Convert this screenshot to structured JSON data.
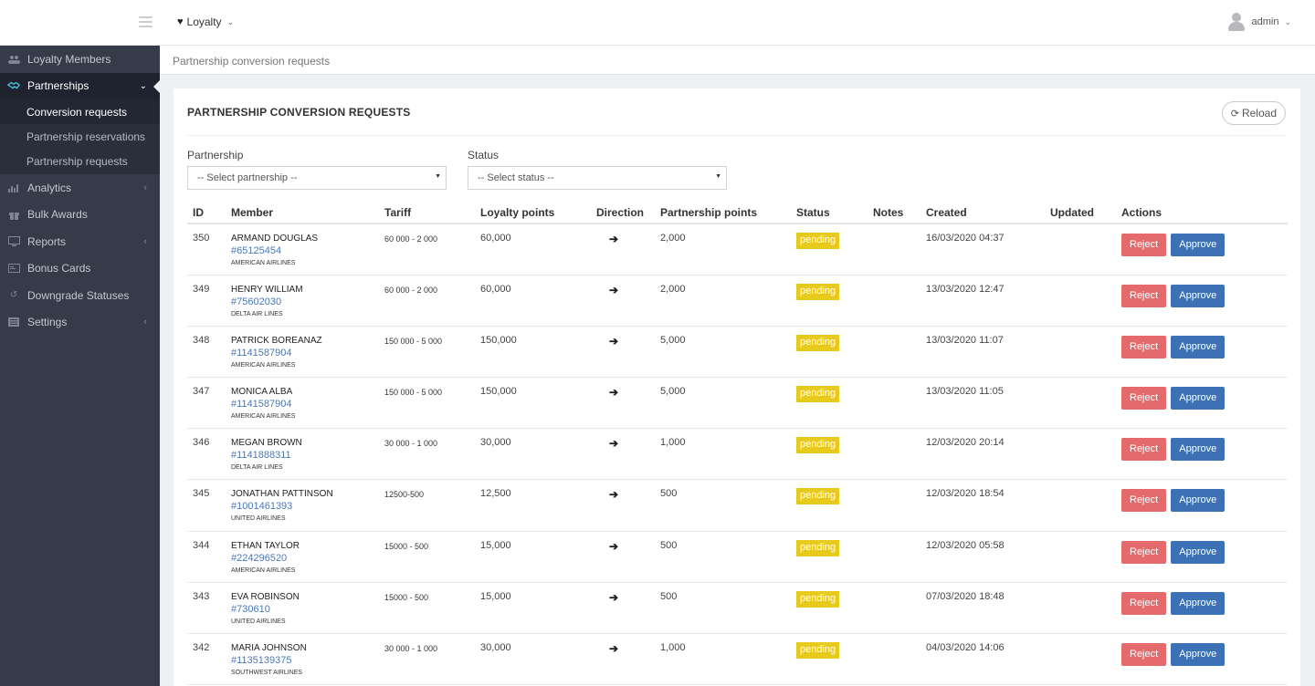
{
  "topbar": {
    "module_label": "Loyalty",
    "user_label": "admin"
  },
  "sidebar": {
    "items": [
      {
        "label": "Loyalty Members",
        "icon": "users-icon"
      },
      {
        "label": "Partnerships",
        "icon": "handshake-icon",
        "active": true
      },
      {
        "label": "Analytics",
        "icon": "bar-chart-icon"
      },
      {
        "label": "Bulk Awards",
        "icon": "gift-icon"
      },
      {
        "label": "Reports",
        "icon": "monitor-icon"
      },
      {
        "label": "Bonus Cards",
        "icon": "card-icon"
      },
      {
        "label": "Downgrade Statuses",
        "icon": "undo-icon"
      },
      {
        "label": "Settings",
        "icon": "list-icon"
      }
    ],
    "sub_items": [
      {
        "label": "Conversion requests",
        "active": true
      },
      {
        "label": "Partnership reservations"
      },
      {
        "label": "Partnership requests"
      }
    ]
  },
  "breadcrumb": "Partnership conversion requests",
  "panel": {
    "title": "PARTNERSHIP CONVERSION REQUESTS",
    "reload_label": "Reload"
  },
  "filters": {
    "partnership_label": "Partnership",
    "partnership_value": "-- Select partnership --",
    "status_label": "Status",
    "status_value": "-- Select status --"
  },
  "table": {
    "columns": [
      "ID",
      "Member",
      "Tariff",
      "Loyalty points",
      "Direction",
      "Partnership points",
      "Status",
      "Notes",
      "Created",
      "Updated",
      "Actions"
    ],
    "reject_label": "Reject",
    "approve_label": "Approve",
    "rows": [
      {
        "id": "350",
        "name": "ARMAND DOUGLAS",
        "card": "#65125454",
        "airline": "AMERICAN AIRLINES",
        "tariff": "60 000 - 2 000",
        "loyalty_points": "60,000",
        "partnership_points": "2,000",
        "status": "pending",
        "notes": "",
        "created": "16/03/2020 04:37",
        "updated": ""
      },
      {
        "id": "349",
        "name": "HENRY WILLIAM",
        "card": "#75602030",
        "airline": "DELTA AIR LINES",
        "tariff": "60 000 - 2 000",
        "loyalty_points": "60,000",
        "partnership_points": "2,000",
        "status": "pending",
        "notes": "",
        "created": "13/03/2020 12:47",
        "updated": ""
      },
      {
        "id": "348",
        "name": "PATRICK BOREANAZ",
        "card": "#1141587904",
        "airline": "AMERICAN AIRLINES",
        "tariff": "150 000 - 5 000",
        "loyalty_points": "150,000",
        "partnership_points": "5,000",
        "status": "pending",
        "notes": "",
        "created": "13/03/2020 11:07",
        "updated": ""
      },
      {
        "id": "347",
        "name": "MONICA ALBA",
        "card": "#1141587904",
        "airline": "AMERICAN AIRLINES",
        "tariff": "150 000 - 5 000",
        "loyalty_points": "150,000",
        "partnership_points": "5,000",
        "status": "pending",
        "notes": "",
        "created": "13/03/2020 11:05",
        "updated": ""
      },
      {
        "id": "346",
        "name": "MEGAN BROWN",
        "card": "#1141888311",
        "airline": "DELTA AIR LINES",
        "tariff": "30 000 - 1 000",
        "loyalty_points": "30,000",
        "partnership_points": "1,000",
        "status": "pending",
        "notes": "",
        "created": "12/03/2020 20:14",
        "updated": ""
      },
      {
        "id": "345",
        "name": "JONATHAN PATTINSON",
        "card": "#1001461393",
        "airline": "UNITED AIRLINES",
        "tariff": "12500-500",
        "loyalty_points": "12,500",
        "partnership_points": "500",
        "status": "pending",
        "notes": "",
        "created": "12/03/2020 18:54",
        "updated": ""
      },
      {
        "id": "344",
        "name": "ETHAN TAYLOR",
        "card": "#224296520",
        "airline": "AMERICAN AIRLINES",
        "tariff": "15000 - 500",
        "loyalty_points": "15,000",
        "partnership_points": "500",
        "status": "pending",
        "notes": "",
        "created": "12/03/2020 05:58",
        "updated": ""
      },
      {
        "id": "343",
        "name": "EVA ROBINSON",
        "card": "#730610",
        "airline": "UNITED AIRLINES",
        "tariff": "15000 - 500",
        "loyalty_points": "15,000",
        "partnership_points": "500",
        "status": "pending",
        "notes": "",
        "created": "07/03/2020 18:48",
        "updated": ""
      },
      {
        "id": "342",
        "name": "MARIA JOHNSON",
        "card": "#1135139375",
        "airline": "SOUTHWEST AIRLINES",
        "tariff": "30 000 - 1 000",
        "loyalty_points": "30,000",
        "partnership_points": "1,000",
        "status": "pending",
        "notes": "",
        "created": "04/03/2020 14:06",
        "updated": ""
      }
    ]
  }
}
